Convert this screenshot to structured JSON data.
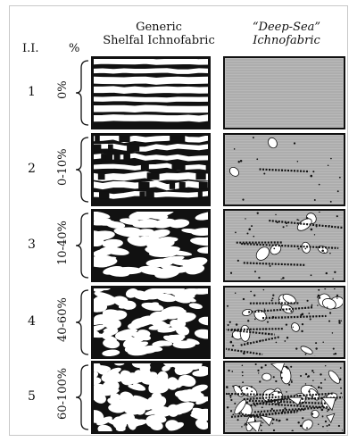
{
  "headers": {
    "ii": "I.I.",
    "percent": "%",
    "shelf_line1": "Generic",
    "shelf_line2": "Shelfal Ichnofabric",
    "deep_line1": "“Deep-Sea”",
    "deep_line2": "Ichnofabric"
  },
  "rows": [
    {
      "index": "1",
      "percent": "0%"
    },
    {
      "index": "2",
      "percent": "0-10%"
    },
    {
      "index": "3",
      "percent": "10-40%"
    },
    {
      "index": "4",
      "percent": "40-60%"
    },
    {
      "index": "5",
      "percent": "60-100%"
    }
  ],
  "colors": {
    "ink": "#111111",
    "deep_fill": "#b9b9b9",
    "paper": "#ffffff"
  }
}
